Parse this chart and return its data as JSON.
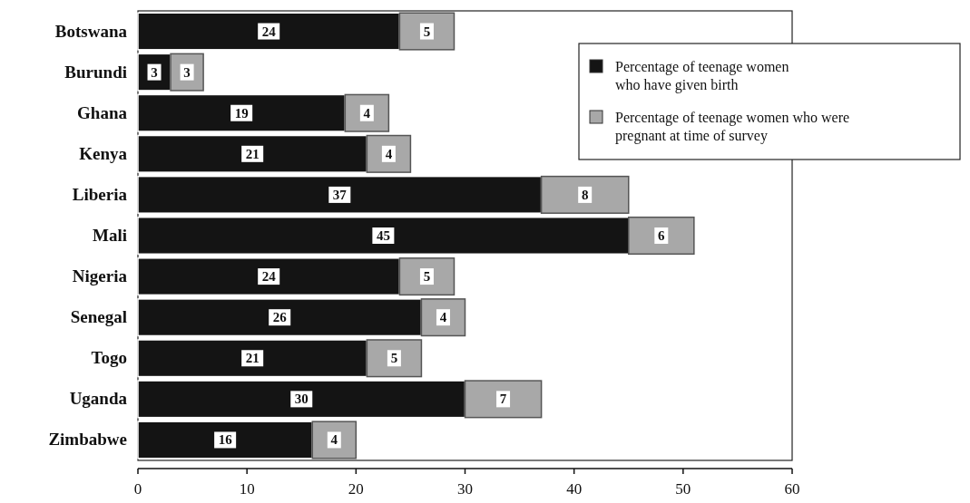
{
  "chart_data": {
    "type": "bar",
    "orientation": "horizontal",
    "stacked": true,
    "categories": [
      "Botswana",
      "Burundi",
      "Ghana",
      "Kenya",
      "Liberia",
      "Mali",
      "Nigeria",
      "Senegal",
      "Togo",
      "Uganda",
      "Zimbabwe"
    ],
    "series": [
      {
        "name": "Percentage of  teenage women who have given birth",
        "color": "#141414",
        "values": [
          24,
          3,
          19,
          21,
          37,
          45,
          24,
          26,
          21,
          30,
          16
        ]
      },
      {
        "name": "Percentage of teenage women who were pregnant at time of survey",
        "color": "#a8a8a8",
        "values": [
          5,
          3,
          4,
          4,
          8,
          6,
          5,
          4,
          5,
          7,
          4
        ]
      }
    ],
    "xlim": [
      0,
      60
    ],
    "xticks": [
      0,
      10,
      20,
      30,
      40,
      50,
      60
    ],
    "data_labels": true,
    "legend": "top right"
  }
}
